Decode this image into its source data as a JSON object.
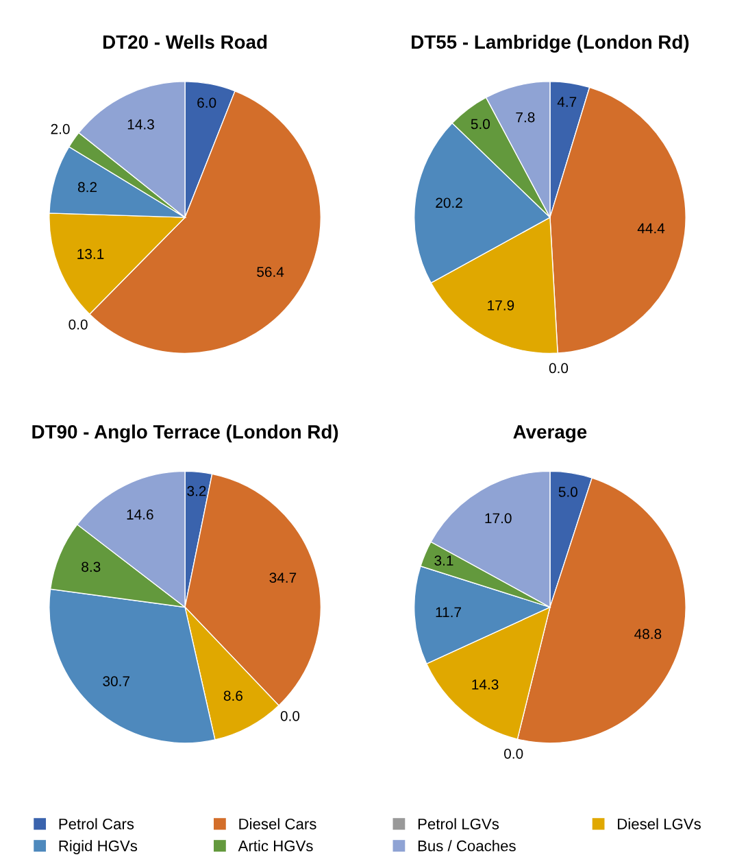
{
  "chart_data": [
    {
      "type": "pie",
      "title": "DT20 - Wells Road",
      "categories": [
        "Petrol Cars",
        "Diesel Cars",
        "Petrol LGVs",
        "Diesel LGVs",
        "Rigid HGVs",
        "Artic HGVs",
        "Bus / Coaches"
      ],
      "values": [
        6.0,
        56.4,
        0.0,
        13.1,
        8.2,
        2.0,
        14.3
      ],
      "value_labels": [
        "6.0",
        "56.4",
        "0.0",
        "13.1",
        "8.2",
        "2.0",
        "14.3"
      ],
      "colors": [
        "#3a63ad",
        "#d36e2a",
        "#999999",
        "#e0a800",
        "#4e89bd",
        "#63993d",
        "#8fa3d4"
      ],
      "legend": "bottom"
    },
    {
      "type": "pie",
      "title": "DT55 - Lambridge (London Rd)",
      "categories": [
        null,
        null,
        null,
        null,
        null,
        null,
        null
      ],
      "values": [
        4.7,
        44.4,
        0.0,
        17.9,
        20.2,
        5.0,
        7.8
      ],
      "value_labels": [
        "4.7",
        "44.4",
        "0.0",
        "17.9",
        "20.2",
        "5.0",
        "7.8"
      ],
      "colors": [
        "#3a63ad",
        "#d36e2a",
        "#999999",
        "#e0a800",
        "#4e89bd",
        "#63993d",
        "#8fa3d4"
      ]
    },
    {
      "type": "pie",
      "title": "DT90 - Anglo Terrace (London Rd)",
      "categories": [
        null,
        null,
        null,
        null,
        null,
        null,
        null
      ],
      "values": [
        3.2,
        34.7,
        0.0,
        8.6,
        30.7,
        8.3,
        14.6
      ],
      "value_labels": [
        "3.2",
        "34.7",
        "0.0",
        "8.6",
        "30.7",
        "8.3",
        "14.6"
      ],
      "colors": [
        "#3a63ad",
        "#d36e2a",
        "#999999",
        "#e0a800",
        "#4e89bd",
        "#63993d",
        "#8fa3d4"
      ]
    },
    {
      "type": "pie",
      "title": "Average",
      "categories": [
        null,
        null,
        null,
        null,
        null,
        null,
        null
      ],
      "values": [
        5.0,
        48.8,
        0.0,
        14.3,
        11.7,
        3.1,
        17.0
      ],
      "value_labels": [
        "5.0",
        "48.8",
        "0.0",
        "14.3",
        "11.7",
        "3.1",
        "17.0"
      ],
      "colors": [
        "#3a63ad",
        "#d36e2a",
        "#999999",
        "#e0a800",
        "#4e89bd",
        "#63993d",
        "#8fa3d4"
      ]
    }
  ]
}
